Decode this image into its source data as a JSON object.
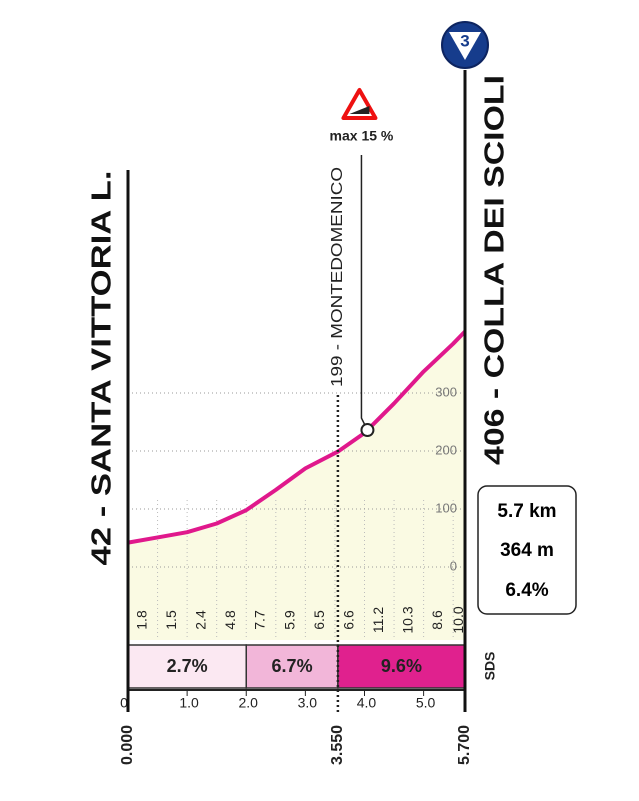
{
  "chart_data": {
    "type": "climb-profile",
    "start": {
      "label": "42 - SANTA VITTORIA L.",
      "km_label": "0.000"
    },
    "finish": {
      "label": "406 - COLLA DEI SCIOLI",
      "km_label": "5.700",
      "badge": "3"
    },
    "waypoint": {
      "label": "199 - MONTEDOMENICO",
      "km": 3.55,
      "km_label": "3.550"
    },
    "max_gradient": {
      "label": "max 15 %",
      "km": 4.05
    },
    "summary": [
      "5.7 km",
      "364 m",
      "6.4%"
    ],
    "x": [
      0,
      0.5,
      1.0,
      1.5,
      2.0,
      2.5,
      3.0,
      3.55,
      4.0,
      4.5,
      5.0,
      5.5,
      5.7
    ],
    "values": [
      42,
      51,
      60,
      75,
      98,
      133,
      170,
      199,
      231,
      282,
      337,
      385,
      406
    ],
    "color": "#e0188c",
    "xlim": [
      0,
      5.7
    ],
    "ylim": [
      -50,
      450
    ],
    "xticks": [
      0,
      {
        "value": 1,
        "label": "1.0"
      },
      {
        "value": 2,
        "label": "2.0"
      },
      {
        "value": 3,
        "label": "3.0"
      },
      {
        "value": 4,
        "label": "4.0"
      },
      {
        "value": 5,
        "label": "5.0"
      }
    ],
    "yticks": [
      0,
      100,
      200,
      300
    ],
    "gradient_labels": [
      "1.8",
      "1.5",
      "2.4",
      "4.8",
      "7.7",
      "5.9",
      "6.5",
      "6.6",
      "11.2",
      "10.3",
      "8.6",
      "10.0"
    ],
    "sections": [
      {
        "start": 0,
        "end": 2,
        "value": 2.7,
        "label": "2.7%",
        "color": "#fbe8f2"
      },
      {
        "start": 2,
        "end": 3.55,
        "value": 6.7,
        "label": "6.7%",
        "color": "#f2b6d9"
      },
      {
        "start": 3.55,
        "end": 5.7,
        "value": 9.6,
        "label": "9.6%",
        "color": "#e0218e"
      }
    ],
    "logo": "SDS"
  }
}
